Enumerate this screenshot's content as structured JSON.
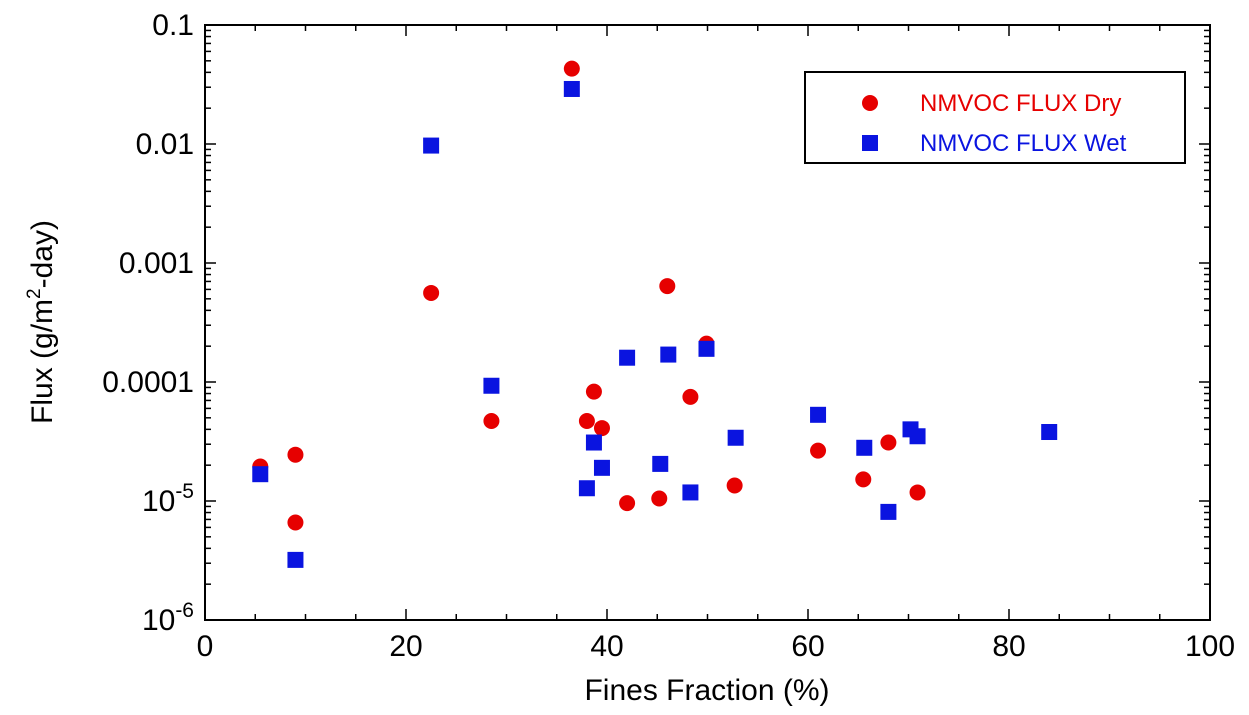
{
  "chart_data": {
    "type": "scatter",
    "xlabel": "Fines Fraction (%)",
    "ylabel": {
      "prefix": "Flux (g/m",
      "sup": "2",
      "suffix": "-day)"
    },
    "xlim": [
      0,
      100
    ],
    "ylim": [
      1e-06,
      0.1
    ],
    "yscale": "log",
    "grid": false,
    "legend_position": "top-right",
    "x_ticks": [
      {
        "value": 0,
        "label": "0"
      },
      {
        "value": 20,
        "label": "20"
      },
      {
        "value": 40,
        "label": "40"
      },
      {
        "value": 60,
        "label": "60"
      },
      {
        "value": 80,
        "label": "80"
      },
      {
        "value": 100,
        "label": "100"
      }
    ],
    "y_ticks": [
      {
        "value": 0.1,
        "label": "0.1"
      },
      {
        "value": 0.01,
        "label": "0.01"
      },
      {
        "value": 0.001,
        "label": "0.001"
      },
      {
        "value": 0.0001,
        "label": "0.0001"
      },
      {
        "value": 1e-05,
        "base": "10",
        "exp": "-5"
      },
      {
        "value": 1e-06,
        "base": "10",
        "exp": "-6"
      }
    ],
    "series": [
      {
        "name": "NMVOC FLUX Dry",
        "marker": "circle",
        "color": "#e60000",
        "points": [
          [
            5.5,
            1.95e-05
          ],
          [
            9,
            2.45e-05
          ],
          [
            9,
            6.6e-06
          ],
          [
            22.5,
            0.00056
          ],
          [
            28.5,
            4.7e-05
          ],
          [
            36.5,
            0.043
          ],
          [
            38,
            4.7e-05
          ],
          [
            38.7,
            8.3e-05
          ],
          [
            39.5,
            4.1e-05
          ],
          [
            42,
            9.6e-06
          ],
          [
            45.2,
            1.05e-05
          ],
          [
            46,
            0.00064
          ],
          [
            48.3,
            7.5e-05
          ],
          [
            49.9,
            0.00021
          ],
          [
            52.7,
            1.35e-05
          ],
          [
            61,
            2.65e-05
          ],
          [
            65.5,
            1.52e-05
          ],
          [
            68,
            3.1e-05
          ],
          [
            70.9,
            1.18e-05
          ]
        ]
      },
      {
        "name": "NMVOC FLUX Wet",
        "marker": "square",
        "color": "#0a14e0",
        "points": [
          [
            5.5,
            1.68e-05
          ],
          [
            9,
            3.2e-06
          ],
          [
            22.5,
            0.0097
          ],
          [
            28.5,
            9.3e-05
          ],
          [
            36.5,
            0.029
          ],
          [
            38,
            1.28e-05
          ],
          [
            38.7,
            3.1e-05
          ],
          [
            39.5,
            1.9e-05
          ],
          [
            42,
            0.00016
          ],
          [
            45.3,
            2.05e-05
          ],
          [
            46.1,
            0.00017
          ],
          [
            48.3,
            1.18e-05
          ],
          [
            49.9,
            0.00019
          ],
          [
            52.8,
            3.4e-05
          ],
          [
            61,
            5.3e-05
          ],
          [
            65.6,
            2.8e-05
          ],
          [
            68,
            8.1e-06
          ],
          [
            70.2,
            4e-05
          ],
          [
            70.9,
            3.5e-05
          ],
          [
            84,
            3.8e-05
          ]
        ]
      }
    ]
  }
}
